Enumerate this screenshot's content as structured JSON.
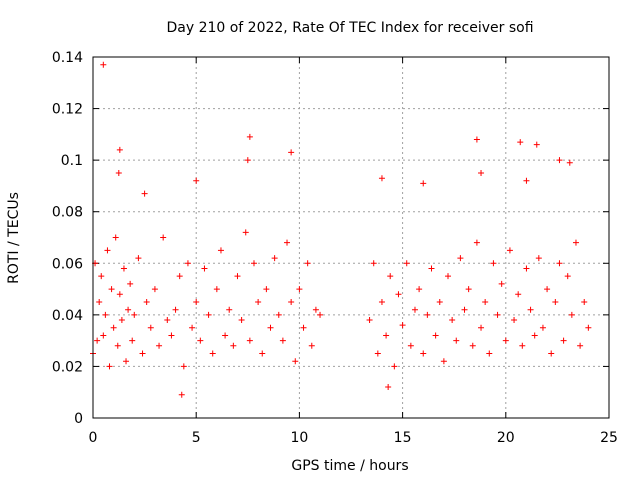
{
  "chart_data": {
    "type": "scatter",
    "title": "Day 210 of 2022, Rate Of TEC Index for receiver sofi",
    "xlabel": "GPS time / hours",
    "ylabel": "ROTI / TECUs",
    "xlim": [
      0,
      25
    ],
    "ylim": [
      0,
      0.14
    ],
    "xticks": [
      0,
      5,
      10,
      15,
      20,
      25
    ],
    "yticks": [
      0,
      0.02,
      0.04,
      0.06,
      0.08,
      0.1,
      0.12,
      0.14
    ],
    "ytick_labels": [
      "0",
      "0.02",
      "0.04",
      "0.06",
      "0.08",
      "0.1",
      "0.12",
      "0.14"
    ],
    "grid": true,
    "marker": "plus",
    "color": "#ff0000",
    "data_gap_hours": [
      11.1,
      13.3
    ],
    "series": [
      {
        "x": [
          0.0,
          0.1,
          0.2,
          0.3,
          0.4,
          0.5,
          0.6,
          0.7,
          0.8,
          0.9,
          1.0,
          1.1,
          1.2,
          1.3,
          1.4,
          1.5,
          1.6,
          1.7,
          1.8,
          1.9,
          2.0,
          2.2,
          2.4,
          2.6,
          2.8,
          3.0,
          3.2,
          3.4,
          3.6,
          3.8,
          4.0,
          4.2,
          4.4,
          4.6,
          4.8,
          5.0,
          5.2,
          5.4,
          5.6,
          5.8,
          6.0,
          6.2,
          6.4,
          6.6,
          6.8,
          7.0,
          7.2,
          7.4,
          7.6,
          7.8,
          8.0,
          8.2,
          8.4,
          8.6,
          8.8,
          9.0,
          9.2,
          9.4,
          9.6,
          9.8,
          10.0,
          10.2,
          10.4,
          10.6,
          10.8,
          11.0,
          13.4,
          13.6,
          13.8,
          14.0,
          14.2,
          14.4,
          14.6,
          14.8,
          15.0,
          15.2,
          15.4,
          15.6,
          15.8,
          16.0,
          16.2,
          16.4,
          16.6,
          16.8,
          17.0,
          17.2,
          17.4,
          17.6,
          17.8,
          18.0,
          18.2,
          18.4,
          18.6,
          18.8,
          19.0,
          19.2,
          19.4,
          19.6,
          19.8,
          20.0,
          20.2,
          20.4,
          20.6,
          20.8,
          21.0,
          21.2,
          21.4,
          21.6,
          21.8,
          22.0,
          22.2,
          22.4,
          22.6,
          22.8,
          23.0,
          23.2,
          23.4,
          23.6,
          23.8,
          24.0,
          0.5,
          1.3,
          1.25,
          7.6,
          7.5,
          9.6,
          14.0,
          16.0,
          18.6,
          20.7,
          21.5,
          22.6,
          23.1,
          18.8,
          21.0,
          2.5,
          5.0,
          4.3,
          14.3
        ],
        "y": [
          0.025,
          0.06,
          0.03,
          0.045,
          0.055,
          0.032,
          0.04,
          0.065,
          0.02,
          0.05,
          0.035,
          0.07,
          0.028,
          0.048,
          0.038,
          0.058,
          0.022,
          0.042,
          0.052,
          0.03,
          0.04,
          0.062,
          0.025,
          0.045,
          0.035,
          0.05,
          0.028,
          0.07,
          0.038,
          0.032,
          0.042,
          0.055,
          0.02,
          0.06,
          0.035,
          0.045,
          0.03,
          0.058,
          0.04,
          0.025,
          0.05,
          0.065,
          0.032,
          0.042,
          0.028,
          0.055,
          0.038,
          0.072,
          0.03,
          0.06,
          0.045,
          0.025,
          0.05,
          0.035,
          0.062,
          0.04,
          0.03,
          0.068,
          0.045,
          0.022,
          0.05,
          0.035,
          0.06,
          0.028,
          0.042,
          0.04,
          0.038,
          0.06,
          0.025,
          0.045,
          0.032,
          0.055,
          0.02,
          0.048,
          0.036,
          0.06,
          0.028,
          0.042,
          0.05,
          0.025,
          0.04,
          0.058,
          0.032,
          0.045,
          0.022,
          0.055,
          0.038,
          0.03,
          0.062,
          0.042,
          0.05,
          0.028,
          0.068,
          0.035,
          0.045,
          0.025,
          0.06,
          0.04,
          0.052,
          0.03,
          0.065,
          0.038,
          0.048,
          0.028,
          0.058,
          0.042,
          0.032,
          0.062,
          0.035,
          0.05,
          0.025,
          0.045,
          0.06,
          0.03,
          0.055,
          0.04,
          0.068,
          0.028,
          0.045,
          0.035,
          0.137,
          0.104,
          0.095,
          0.109,
          0.1,
          0.103,
          0.093,
          0.091,
          0.108,
          0.107,
          0.106,
          0.1,
          0.099,
          0.095,
          0.092,
          0.087,
          0.092,
          0.009,
          0.012
        ]
      }
    ]
  }
}
